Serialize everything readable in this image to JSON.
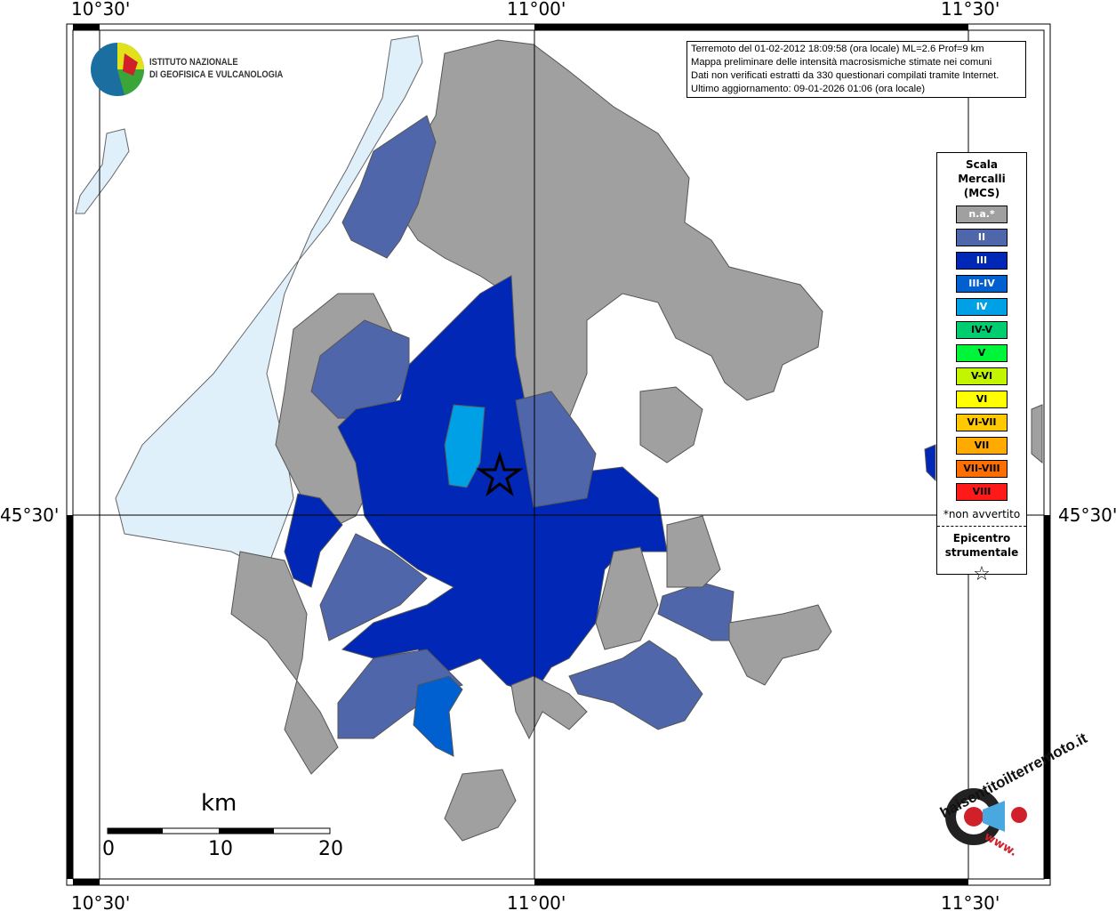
{
  "header": {
    "lon_labels": [
      "10°30'",
      "11°00'",
      "11°30'"
    ],
    "lat_label": "45°30'"
  },
  "institute": {
    "line1": "ISTITUTO NAZIONALE",
    "line2": "DI GEOFISICA E VULCANOLOGIA"
  },
  "info": {
    "lines": [
      "Terremoto del 01-02-2012 18:09:58 (ora locale) ML=2.6 Prof=9 km",
      "Mappa preliminare delle intensità macrosismiche stimate nei comuni",
      "Dati non verificati estratti da 330 questionari compilati tramite Internet.",
      "Ultimo aggiornamento: 09-01-2026 01:06 (ora locale)"
    ]
  },
  "legend": {
    "title": "Scala Mercalli (MCS)",
    "items": [
      {
        "label": "n.a.*",
        "color": "#a0a0a0",
        "text": "#fff"
      },
      {
        "label": "II",
        "color": "#4f66ab",
        "text": "#fff"
      },
      {
        "label": "III",
        "color": "#0027b5",
        "text": "#fff"
      },
      {
        "label": "III-IV",
        "color": "#0060cf",
        "text": "#fff"
      },
      {
        "label": "IV",
        "color": "#00a0e6",
        "text": "#fff"
      },
      {
        "label": "IV-V",
        "color": "#00cc70",
        "text": "#000"
      },
      {
        "label": "V",
        "color": "#00f53a",
        "text": "#000"
      },
      {
        "label": "V-VI",
        "color": "#c4f500",
        "text": "#000"
      },
      {
        "label": "VI",
        "color": "#ffff00",
        "text": "#000"
      },
      {
        "label": "VI-VII",
        "color": "#ffc800",
        "text": "#000"
      },
      {
        "label": "VII",
        "color": "#ffaa00",
        "text": "#000"
      },
      {
        "label": "VII-VIII",
        "color": "#ff6e00",
        "text": "#000"
      },
      {
        "label": "VIII",
        "color": "#ff1a1a",
        "text": "#000"
      }
    ],
    "note": "*non avvertito",
    "epicenter": "Epicentro strumentale",
    "star": "☆"
  },
  "scale": {
    "unit": "km",
    "ticks": [
      "0",
      "10",
      "20"
    ]
  },
  "brand": {
    "text": "haisentitoilterremoto.it",
    "www": "www."
  }
}
